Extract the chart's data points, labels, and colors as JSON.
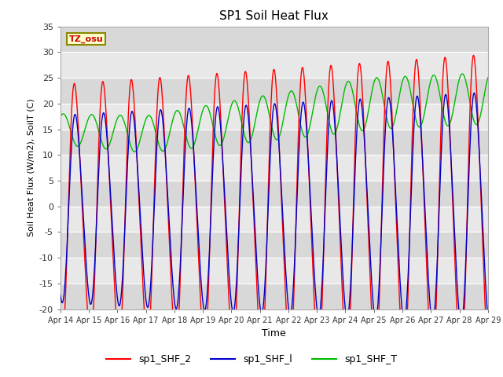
{
  "title": "SP1 Soil Heat Flux",
  "xlabel": "Time",
  "ylabel": "Soil Heat Flux (W/m2), SoilT (C)",
  "ylim": [
    -20,
    35
  ],
  "yticks": [
    -20,
    -15,
    -10,
    -5,
    0,
    5,
    10,
    15,
    20,
    25,
    30,
    35
  ],
  "xtick_labels": [
    "Apr 14",
    "Apr 15",
    "Apr 16",
    "Apr 17",
    "Apr 18",
    "Apr 19",
    "Apr 20",
    "Apr 21",
    "Apr 22",
    "Apr 23",
    "Apr 24",
    "Apr 25",
    "Apr 26",
    "Apr 27",
    "Apr 28",
    "Apr 29"
  ],
  "color_shf2": "#ff0000",
  "color_shf1": "#0000cc",
  "color_shft": "#00bb00",
  "legend_labels": [
    "sp1_SHF_2",
    "sp1_SHF_l",
    "sp1_SHF_T"
  ],
  "tz_label": "TZ_osu",
  "plot_bg": "#e8e8e8",
  "linewidth": 1.0,
  "num_days": 15
}
